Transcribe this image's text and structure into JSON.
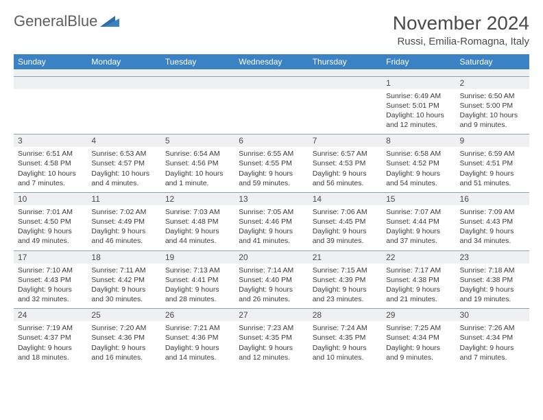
{
  "logo": {
    "text1": "General",
    "text2": "Blue"
  },
  "title": "November 2024",
  "location": "Russi, Emilia-Romagna, Italy",
  "colors": {
    "header_bg": "#3b82c4",
    "header_text": "#ffffff",
    "daynum_bg": "#eef0f2",
    "border": "#8aa0b5",
    "body_text": "#3a3a3a",
    "title_text": "#4a4a4a",
    "logo_gray": "#5e5e5e",
    "logo_blue": "#3b82c4"
  },
  "day_headers": [
    "Sunday",
    "Monday",
    "Tuesday",
    "Wednesday",
    "Thursday",
    "Friday",
    "Saturday"
  ],
  "weeks": [
    {
      "nums": [
        "",
        "",
        "",
        "",
        "",
        "1",
        "2"
      ],
      "cells": [
        "",
        "",
        "",
        "",
        "",
        "Sunrise: 6:49 AM\nSunset: 5:01 PM\nDaylight: 10 hours and 12 minutes.",
        "Sunrise: 6:50 AM\nSunset: 5:00 PM\nDaylight: 10 hours and 9 minutes."
      ]
    },
    {
      "nums": [
        "3",
        "4",
        "5",
        "6",
        "7",
        "8",
        "9"
      ],
      "cells": [
        "Sunrise: 6:51 AM\nSunset: 4:58 PM\nDaylight: 10 hours and 7 minutes.",
        "Sunrise: 6:53 AM\nSunset: 4:57 PM\nDaylight: 10 hours and 4 minutes.",
        "Sunrise: 6:54 AM\nSunset: 4:56 PM\nDaylight: 10 hours and 1 minute.",
        "Sunrise: 6:55 AM\nSunset: 4:55 PM\nDaylight: 9 hours and 59 minutes.",
        "Sunrise: 6:57 AM\nSunset: 4:53 PM\nDaylight: 9 hours and 56 minutes.",
        "Sunrise: 6:58 AM\nSunset: 4:52 PM\nDaylight: 9 hours and 54 minutes.",
        "Sunrise: 6:59 AM\nSunset: 4:51 PM\nDaylight: 9 hours and 51 minutes."
      ]
    },
    {
      "nums": [
        "10",
        "11",
        "12",
        "13",
        "14",
        "15",
        "16"
      ],
      "cells": [
        "Sunrise: 7:01 AM\nSunset: 4:50 PM\nDaylight: 9 hours and 49 minutes.",
        "Sunrise: 7:02 AM\nSunset: 4:49 PM\nDaylight: 9 hours and 46 minutes.",
        "Sunrise: 7:03 AM\nSunset: 4:48 PM\nDaylight: 9 hours and 44 minutes.",
        "Sunrise: 7:05 AM\nSunset: 4:46 PM\nDaylight: 9 hours and 41 minutes.",
        "Sunrise: 7:06 AM\nSunset: 4:45 PM\nDaylight: 9 hours and 39 minutes.",
        "Sunrise: 7:07 AM\nSunset: 4:44 PM\nDaylight: 9 hours and 37 minutes.",
        "Sunrise: 7:09 AM\nSunset: 4:43 PM\nDaylight: 9 hours and 34 minutes."
      ]
    },
    {
      "nums": [
        "17",
        "18",
        "19",
        "20",
        "21",
        "22",
        "23"
      ],
      "cells": [
        "Sunrise: 7:10 AM\nSunset: 4:43 PM\nDaylight: 9 hours and 32 minutes.",
        "Sunrise: 7:11 AM\nSunset: 4:42 PM\nDaylight: 9 hours and 30 minutes.",
        "Sunrise: 7:13 AM\nSunset: 4:41 PM\nDaylight: 9 hours and 28 minutes.",
        "Sunrise: 7:14 AM\nSunset: 4:40 PM\nDaylight: 9 hours and 26 minutes.",
        "Sunrise: 7:15 AM\nSunset: 4:39 PM\nDaylight: 9 hours and 23 minutes.",
        "Sunrise: 7:17 AM\nSunset: 4:38 PM\nDaylight: 9 hours and 21 minutes.",
        "Sunrise: 7:18 AM\nSunset: 4:38 PM\nDaylight: 9 hours and 19 minutes."
      ]
    },
    {
      "nums": [
        "24",
        "25",
        "26",
        "27",
        "28",
        "29",
        "30"
      ],
      "cells": [
        "Sunrise: 7:19 AM\nSunset: 4:37 PM\nDaylight: 9 hours and 18 minutes.",
        "Sunrise: 7:20 AM\nSunset: 4:36 PM\nDaylight: 9 hours and 16 minutes.",
        "Sunrise: 7:21 AM\nSunset: 4:36 PM\nDaylight: 9 hours and 14 minutes.",
        "Sunrise: 7:23 AM\nSunset: 4:35 PM\nDaylight: 9 hours and 12 minutes.",
        "Sunrise: 7:24 AM\nSunset: 4:35 PM\nDaylight: 9 hours and 10 minutes.",
        "Sunrise: 7:25 AM\nSunset: 4:34 PM\nDaylight: 9 hours and 9 minutes.",
        "Sunrise: 7:26 AM\nSunset: 4:34 PM\nDaylight: 9 hours and 7 minutes."
      ]
    }
  ]
}
